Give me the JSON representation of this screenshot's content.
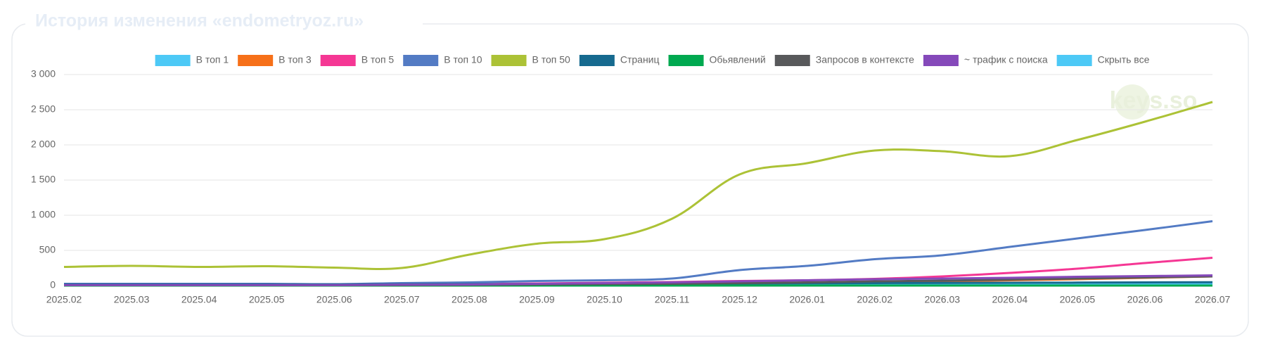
{
  "header": {
    "title": "История изменения «endometryoz.ru»"
  },
  "chart_data": {
    "type": "line",
    "categories": [
      "2025.02",
      "2025.03",
      "2025.04",
      "2025.05",
      "2025.06",
      "2025.07",
      "2025.08",
      "2025.09",
      "2025.10",
      "2025.11",
      "2025.12",
      "2026.01",
      "2026.02",
      "2026.03",
      "2026.04",
      "2026.05",
      "2026.06",
      "2026.07"
    ],
    "series": [
      {
        "name": "В топ 1",
        "color": "#4dc9f6",
        "values": [
          2,
          2,
          2,
          2,
          2,
          3,
          4,
          5,
          6,
          8,
          10,
          12,
          15,
          18,
          20,
          22,
          25,
          28
        ]
      },
      {
        "name": "В топ 3",
        "color": "#f67019",
        "values": [
          5,
          5,
          5,
          5,
          5,
          8,
          10,
          15,
          20,
          25,
          35,
          40,
          50,
          60,
          75,
          90,
          110,
          130
        ]
      },
      {
        "name": "В топ 5",
        "color": "#f53794",
        "values": [
          10,
          10,
          10,
          10,
          10,
          15,
          20,
          30,
          40,
          50,
          65,
          75,
          95,
          130,
          180,
          240,
          320,
          395
        ]
      },
      {
        "name": "В топ 10",
        "color": "#537bc4",
        "values": [
          25,
          25,
          25,
          25,
          20,
          35,
          45,
          65,
          75,
          100,
          220,
          280,
          375,
          430,
          550,
          670,
          790,
          915
        ]
      },
      {
        "name": "В топ 50",
        "color": "#acc236",
        "values": [
          265,
          280,
          265,
          275,
          255,
          250,
          440,
          595,
          660,
          950,
          1580,
          1740,
          1920,
          1910,
          1840,
          2070,
          2330,
          2610
        ]
      },
      {
        "name": "Страниц",
        "color": "#166a8f",
        "values": [
          15,
          15,
          15,
          15,
          15,
          18,
          20,
          22,
          25,
          28,
          30,
          32,
          35,
          38,
          40,
          42,
          45,
          48
        ]
      },
      {
        "name": "Обьявлений",
        "color": "#00a950",
        "values": [
          0,
          0,
          0,
          0,
          0,
          0,
          0,
          0,
          0,
          0,
          0,
          0,
          0,
          0,
          0,
          0,
          0,
          0
        ]
      },
      {
        "name": "Запросов в контексте",
        "color": "#58595b",
        "values": [
          5,
          5,
          5,
          5,
          5,
          8,
          10,
          15,
          20,
          25,
          35,
          45,
          60,
          70,
          85,
          100,
          115,
          130
        ]
      },
      {
        "name": "~ трафик с поиска",
        "color": "#8549ba",
        "values": [
          8,
          8,
          8,
          8,
          8,
          12,
          15,
          25,
          35,
          45,
          60,
          75,
          90,
          100,
          110,
          125,
          135,
          145
        ]
      }
    ],
    "hide_all": {
      "name": "Скрыть все",
      "color": "#4dc9f6"
    },
    "watermark": "keys.so",
    "ylim": [
      0,
      3000
    ],
    "yticks": [
      0,
      500,
      {
        "value": 1000,
        "label": "1 000"
      },
      {
        "value": 1500,
        "label": "1 500"
      },
      {
        "value": 2000,
        "label": "2 000"
      },
      {
        "value": 2500,
        "label": "2 500"
      },
      {
        "value": 3000,
        "label": "3 000"
      }
    ],
    "grid": true
  }
}
